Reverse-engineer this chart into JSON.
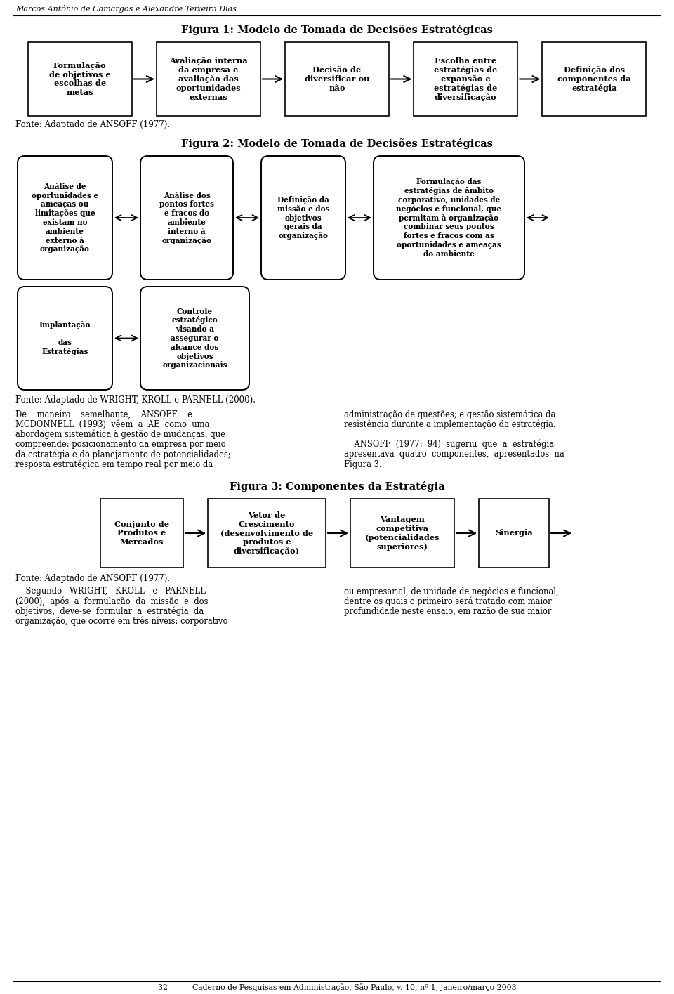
{
  "bg_color": "#ffffff",
  "header_text": "Marcos Antônio de Camargos e Alexandre Teixeira Dias",
  "footer_text": "32          Caderno de Pesquisas em Administração, São Paulo, v. 10, nº 1, janeiro/março 2003",
  "fig1_title": "Figura 1: Modelo de Tomada de Decisões Estratégicas",
  "fig1_boxes": [
    "Formulação\nde objetivos e\nescolhas de\nmetas",
    "Avaliação interna\nda empresa e\navaliação das\noportunidades\nexternas",
    "Decisão de\ndiversificar ou\nnão",
    "Escolha entre\nestratégias de\nexpansão e\nestratégias de\ndiversificação",
    "Definição dos\ncomponentes da\nestratégia"
  ],
  "fig1_source": "Fonte: Adaptado de ANSOFF (1977).",
  "fig2_title": "Figura 2: Modelo de Tomada de Decisões Estratégicas",
  "fig2_row1_boxes": [
    "Análise de\noportunidades e\nameaças ou\nlimitações que\nexistam no\nambiente\nexterno à\norganização",
    "Análise dos\npontos fortes\ne fracos do\nambiente\ninterno à\norganização",
    "Definição da\nmissão e dos\nobjetivos\ngerais da\norganização",
    "Formulação das\nestratégias de âmbito\ncorporativo, unidades de\nnegócios e funcional, que\npermitam à organização\ncombinar seus pontos\nfortes e fracos com as\noportunidades e ameaças\ndo ambiente"
  ],
  "fig2_row2_boxes": [
    "Implantação\n\ndas\nEstratégias",
    "Controle\nestratégico\nvisando a\nassegurar o\nalcance dos\nobjetivos\norganizacionais"
  ],
  "fig2_source": "Fonte: Adaptado de WRIGHT, KROLL e PARNELL (2000).",
  "text_col1_lines": [
    "De    maneira    semelhante,    ANSOFF    e",
    "MCDONNELL  (1993)  vêem  a  AE  como  uma",
    "abordagem sistemática à gestão de mudanças, que",
    "compreende: posicionamento da empresa por meio",
    "da estratégia e do planejamento de potencialidades;",
    "resposta estratégica em tempo real por meio da"
  ],
  "text_col2_lines": [
    "administração de questões; e gestão sistemática da",
    "resistência durante a implementação da estratégia.",
    "",
    "    ANSOFF  (1977:  94)  sugeriu  que  a  estratégia",
    "apresentava  quatro  componentes,  apresentados  na",
    "Figura 3."
  ],
  "fig3_title": "Figura 3: Componentes da Estratégia",
  "fig3_boxes": [
    "Conjunto de\nProdutos e\nMercados",
    "Vetor de\nCrescimento\n(desenvolvimento de\nprodutos e\ndiversificação)",
    "Vantagem\ncompetitiva\n(potencialidades\nsuperiores)",
    "Sinergia"
  ],
  "fig3_source": "Fonte: Adaptado de ANSOFF (1977).",
  "text2_col1_lines": [
    "    Segundo   WRIGHT,   KROLL   e   PARNELL",
    "(2000),  após  a  formulação  da  missão  e  dos",
    "objetivos,  deve-se  formular  a  estratégia  da",
    "organização, que ocorre em três níveis: corporativo"
  ],
  "text2_col2_lines": [
    "ou empresarial, de unidade de negócios e funcional,",
    "dentre os quais o primeiro será tratado com maior",
    "profundidade neste ensaio, em razão de sua maior"
  ]
}
